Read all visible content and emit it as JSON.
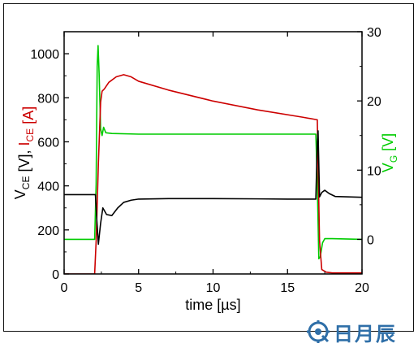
{
  "chart_data": {
    "type": "line",
    "xlabel": "time [µs]",
    "ylabel_left": [
      {
        "text": "V",
        "sub": "CE",
        "color": "#000000"
      },
      {
        "text": " [V], ",
        "sub": "",
        "color": "#000000"
      },
      {
        "text": "I",
        "sub": "CE",
        "color": "#cc0000"
      },
      {
        "text": " [A]",
        "sub": "",
        "color": "#cc0000"
      }
    ],
    "ylabel_right": {
      "text": "V",
      "sub": "G",
      "unit": " [V]",
      "color": "#00cc00"
    },
    "xlim": [
      0,
      20
    ],
    "ylim_left": [
      0,
      1100
    ],
    "ylim_right": [
      -5,
      30
    ],
    "x_ticks": [
      0,
      5,
      10,
      15,
      20
    ],
    "y_left_ticks": [
      0,
      200,
      400,
      600,
      800,
      1000
    ],
    "y_right_ticks": [
      0,
      10,
      20,
      30
    ],
    "series": [
      {
        "axis": "right",
        "color": "#00cc00",
        "points": [
          [
            0,
            0
          ],
          [
            2.05,
            0
          ],
          [
            2.15,
            8
          ],
          [
            2.22,
            25
          ],
          [
            2.28,
            28
          ],
          [
            2.35,
            24
          ],
          [
            2.45,
            16
          ],
          [
            2.55,
            15
          ],
          [
            2.65,
            16.2
          ],
          [
            2.8,
            15.4
          ],
          [
            3.2,
            15.3
          ],
          [
            5,
            15.2
          ],
          [
            10,
            15.2
          ],
          [
            15,
            15.2
          ],
          [
            16.9,
            15.2
          ],
          [
            17.0,
            8
          ],
          [
            17.1,
            -2.8
          ],
          [
            17.2,
            -2.5
          ],
          [
            17.35,
            -0.5
          ],
          [
            17.5,
            0.1
          ],
          [
            18,
            0.1
          ],
          [
            20,
            0
          ]
        ]
      },
      {
        "axis": "left",
        "color": "#cc0000",
        "points": [
          [
            0,
            0
          ],
          [
            2.05,
            0
          ],
          [
            2.15,
            150
          ],
          [
            2.3,
            500
          ],
          [
            2.45,
            780
          ],
          [
            2.55,
            830
          ],
          [
            2.7,
            840
          ],
          [
            3.0,
            870
          ],
          [
            3.5,
            895
          ],
          [
            4.0,
            905
          ],
          [
            4.5,
            895
          ],
          [
            5,
            875
          ],
          [
            7,
            835
          ],
          [
            10,
            785
          ],
          [
            13,
            745
          ],
          [
            16,
            712
          ],
          [
            17.0,
            700
          ],
          [
            17.05,
            500
          ],
          [
            17.15,
            150
          ],
          [
            17.3,
            20
          ],
          [
            17.6,
            8
          ],
          [
            18,
            5
          ],
          [
            20,
            5
          ]
        ]
      },
      {
        "axis": "left",
        "color": "#000000",
        "points": [
          [
            0,
            360
          ],
          [
            2.1,
            360
          ],
          [
            2.2,
            240
          ],
          [
            2.3,
            135
          ],
          [
            2.45,
            230
          ],
          [
            2.6,
            300
          ],
          [
            2.85,
            270
          ],
          [
            3.2,
            265
          ],
          [
            3.6,
            300
          ],
          [
            4.0,
            325
          ],
          [
            4.5,
            335
          ],
          [
            5,
            340
          ],
          [
            7,
            342
          ],
          [
            10,
            342
          ],
          [
            13,
            341
          ],
          [
            15,
            340
          ],
          [
            16.9,
            340
          ],
          [
            17.0,
            600
          ],
          [
            17.05,
            650
          ],
          [
            17.15,
            350
          ],
          [
            17.3,
            370
          ],
          [
            17.5,
            380
          ],
          [
            17.8,
            365
          ],
          [
            18.2,
            352
          ],
          [
            20,
            348
          ]
        ]
      }
    ],
    "legend": "none",
    "grid": false
  },
  "watermark": {
    "text": "日月辰",
    "icon": "gear-letter-logo-icon"
  }
}
